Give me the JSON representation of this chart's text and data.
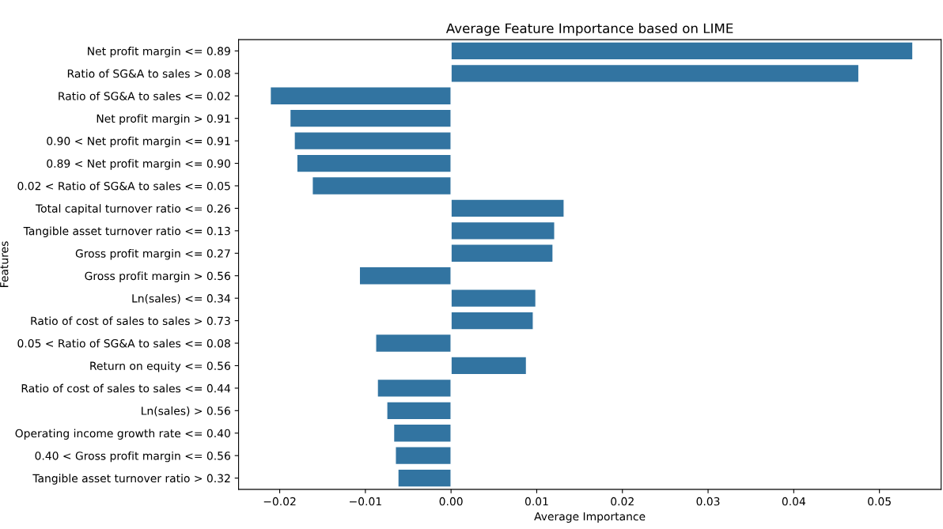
{
  "chart_data": {
    "type": "bar",
    "orientation": "horizontal",
    "title": "Average Feature Importance based on LIME",
    "xlabel": "Average Importance",
    "ylabel": "Features",
    "categories": [
      "Net profit margin <= 0.89",
      "Ratio of SG&A to sales > 0.08",
      "Ratio of SG&A to sales <= 0.02",
      "Net profit margin > 0.91",
      "0.90 < Net profit margin <= 0.91",
      "0.89 < Net profit margin <= 0.90",
      "0.02 < Ratio of SG&A to sales <= 0.05",
      "Total capital turnover ratio <= 0.26",
      "Tangible asset turnover ratio <= 0.13",
      "Gross profit margin <= 0.27",
      "Gross profit margin > 0.56",
      "Ln(sales) <= 0.34",
      "Ratio of cost of sales to sales > 0.73",
      "0.05 < Ratio of SG&A to sales <= 0.08",
      "Return on equity <= 0.56",
      "Ratio of cost of sales to sales <= 0.44",
      "Ln(sales) > 0.56",
      "Operating income growth rate <= 0.40",
      "0.40 < Gross profit margin <= 0.56",
      "Tangible asset turnover ratio > 0.32"
    ],
    "values": [
      0.0539,
      0.0476,
      -0.0211,
      -0.0188,
      -0.0183,
      -0.018,
      -0.0162,
      0.0132,
      0.0121,
      0.0119,
      -0.0107,
      0.0099,
      0.0096,
      -0.0088,
      0.0088,
      -0.0086,
      -0.0075,
      -0.0067,
      -0.0065,
      -0.0062
    ],
    "color": "#3274a1",
    "xlim": [
      -0.0248,
      0.0572
    ],
    "xticks": [
      {
        "value": -0.02,
        "label": "−0.02"
      },
      {
        "value": -0.01,
        "label": "−0.01"
      },
      {
        "value": 0,
        "label": "0.00"
      },
      {
        "value": 0.01,
        "label": "0.01"
      },
      {
        "value": 0.02,
        "label": "0.02"
      },
      {
        "value": 0.03,
        "label": "0.03"
      },
      {
        "value": 0.04,
        "label": "0.04"
      },
      {
        "value": 0.05,
        "label": "0.05"
      }
    ]
  }
}
